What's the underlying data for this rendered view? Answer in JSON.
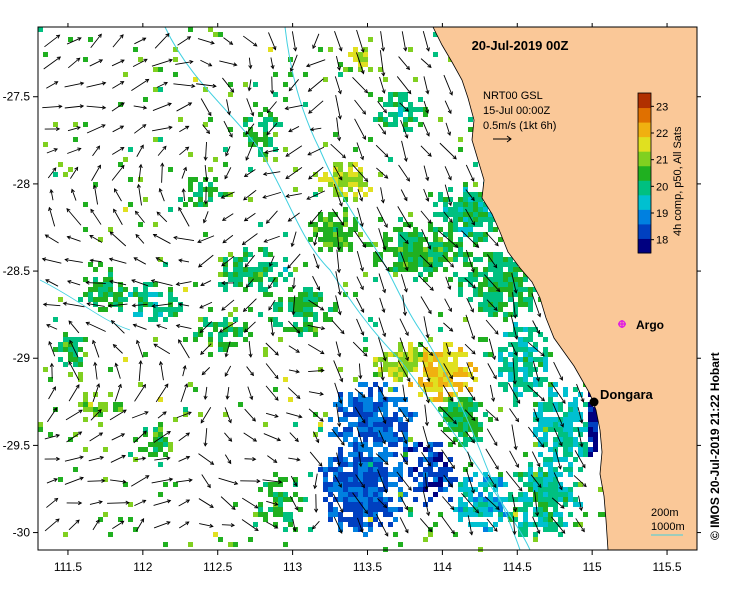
{
  "map": {
    "title": "20-Jul-2019 00Z",
    "x_ticks": [
      "111.5",
      "112",
      "112.5",
      "113",
      "113.5",
      "114",
      "114.5",
      "115",
      "115.5"
    ],
    "y_ticks": [
      "-27.5",
      "-28",
      "-28.5",
      "-29",
      "-29.5",
      "-30"
    ],
    "lon_range": [
      111.3,
      115.7
    ],
    "lat_range": [
      -30.1,
      -27.1
    ],
    "land_color": "#fac898",
    "isobath_color": "#40d0e0",
    "vector_note": {
      "line1": "NRT00 GSL",
      "line2": "15-Jul 00:00Z",
      "line3": "0.5m/s (1kt 6h)"
    },
    "places": [
      {
        "name": "Dongara",
        "marker": "black-dot",
        "lon": 114.93,
        "lat": -29.25
      },
      {
        "name": "Argo",
        "marker": "magenta-asterisk",
        "lon": 115.13,
        "lat": -28.82
      }
    ],
    "isobath_legend": [
      "200m",
      "1000m"
    ],
    "colorbar": {
      "title": "4h comp, p50, All Sats",
      "ticks": [
        "23",
        "22",
        "21",
        "20",
        "19",
        "18"
      ],
      "range": [
        17.5,
        23.5
      ],
      "colors": [
        "#000080",
        "#0040c0",
        "#0080e0",
        "#00c0d0",
        "#00c080",
        "#20b020",
        "#80d020",
        "#e0e020",
        "#f0b010",
        "#e07000",
        "#b03000"
      ]
    },
    "copyright": "© IMOS 20-Jul-2019 21:22 Hobart"
  }
}
